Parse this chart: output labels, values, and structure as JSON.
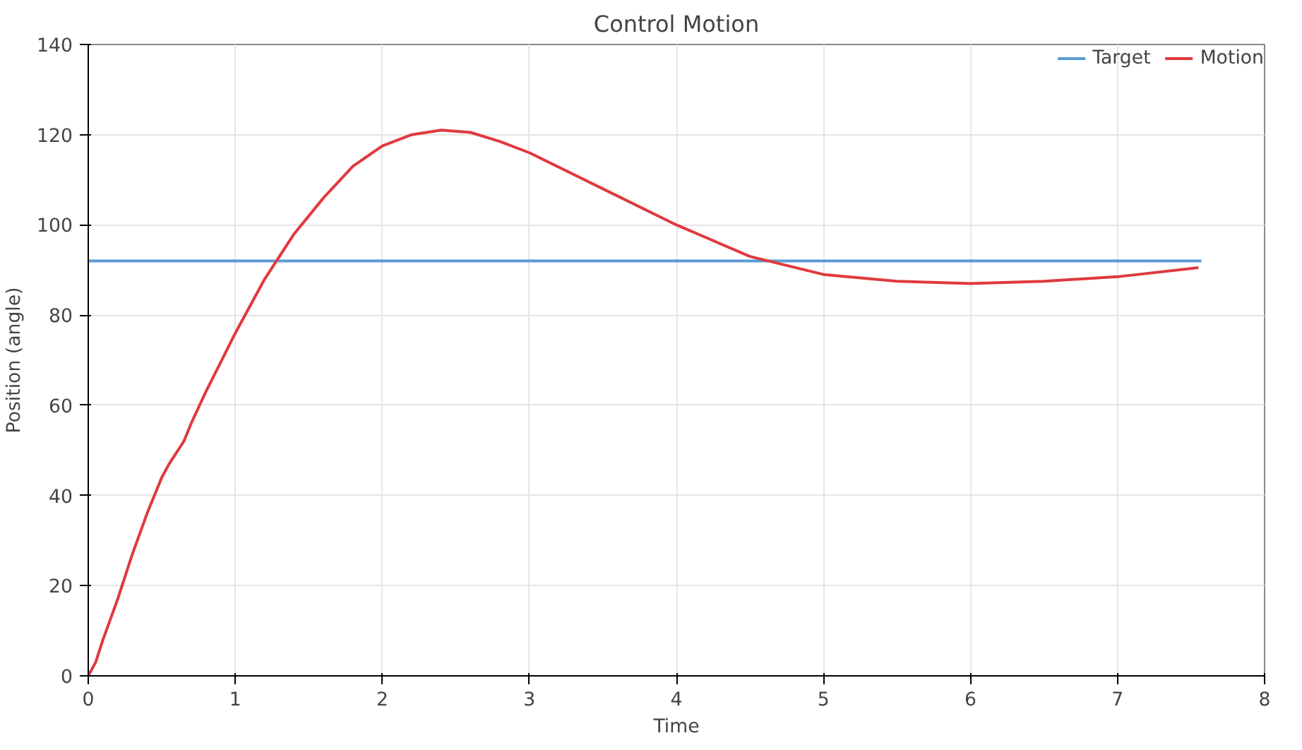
{
  "chart_data": {
    "type": "line",
    "title": "Control Motion",
    "xlabel": "Time",
    "ylabel": "Position (angle)",
    "xlim": [
      0,
      8
    ],
    "ylim": [
      0,
      140
    ],
    "xticks": [
      0,
      1,
      2,
      3,
      4,
      5,
      6,
      7,
      8
    ],
    "yticks": [
      0,
      20,
      40,
      60,
      80,
      100,
      120,
      140
    ],
    "grid": true,
    "legend": "top right",
    "marker": "none",
    "line_style": "solid",
    "series": [
      {
        "name": "Target",
        "color": "#5b9bd5",
        "x": [
          0,
          7.57
        ],
        "values": [
          92,
          92
        ]
      },
      {
        "name": "Motion",
        "color": "#e0393e",
        "x": [
          0,
          0.05,
          0.1,
          0.2,
          0.3,
          0.4,
          0.5,
          0.55,
          0.65,
          0.7,
          0.8,
          1.0,
          1.2,
          1.4,
          1.6,
          1.8,
          2.0,
          2.2,
          2.4,
          2.6,
          2.8,
          3.0,
          3.5,
          4.0,
          4.5,
          5.0,
          5.5,
          6.0,
          6.5,
          7.0,
          7.55
        ],
        "values": [
          0,
          3,
          8,
          17,
          27,
          36,
          44,
          47,
          52,
          56,
          63,
          76,
          88,
          98,
          106,
          113,
          117.5,
          120,
          121,
          120.5,
          118.5,
          116,
          108,
          100,
          93,
          89,
          87.5,
          87,
          87.5,
          88.5,
          90.5
        ]
      }
    ]
  }
}
